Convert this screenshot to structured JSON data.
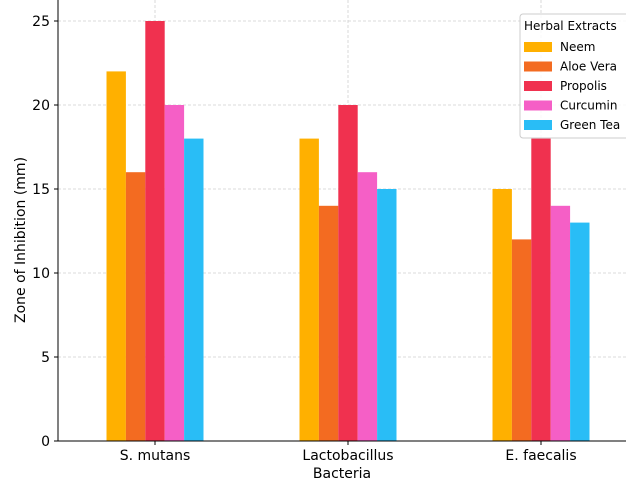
{
  "chart_data": {
    "type": "bar",
    "title": "",
    "xlabel": "Bacteria",
    "ylabel": "Zone of Inhibition (mm)",
    "categories": [
      "S. mutans",
      "Lactobacillus",
      "E. faecalis"
    ],
    "series": [
      {
        "name": "Neem",
        "color": "#ffb000",
        "values": [
          22,
          18,
          15
        ]
      },
      {
        "name": "Aloe Vera",
        "color": "#f36b21",
        "values": [
          16,
          14,
          12
        ]
      },
      {
        "name": "Propolis",
        "color": "#f0314f",
        "values": [
          25,
          20,
          18
        ]
      },
      {
        "name": "Curcumin",
        "color": "#f55fc6",
        "values": [
          20,
          16,
          14
        ]
      },
      {
        "name": "Green Tea",
        "color": "#29bdf6",
        "values": [
          18,
          15,
          13
        ]
      }
    ],
    "ylim": [
      0,
      26.25
    ],
    "yticks": [
      0,
      5,
      10,
      15,
      20,
      25
    ],
    "grid": true,
    "legend": {
      "title": "Herbal Extracts",
      "placement": "top-right"
    }
  }
}
